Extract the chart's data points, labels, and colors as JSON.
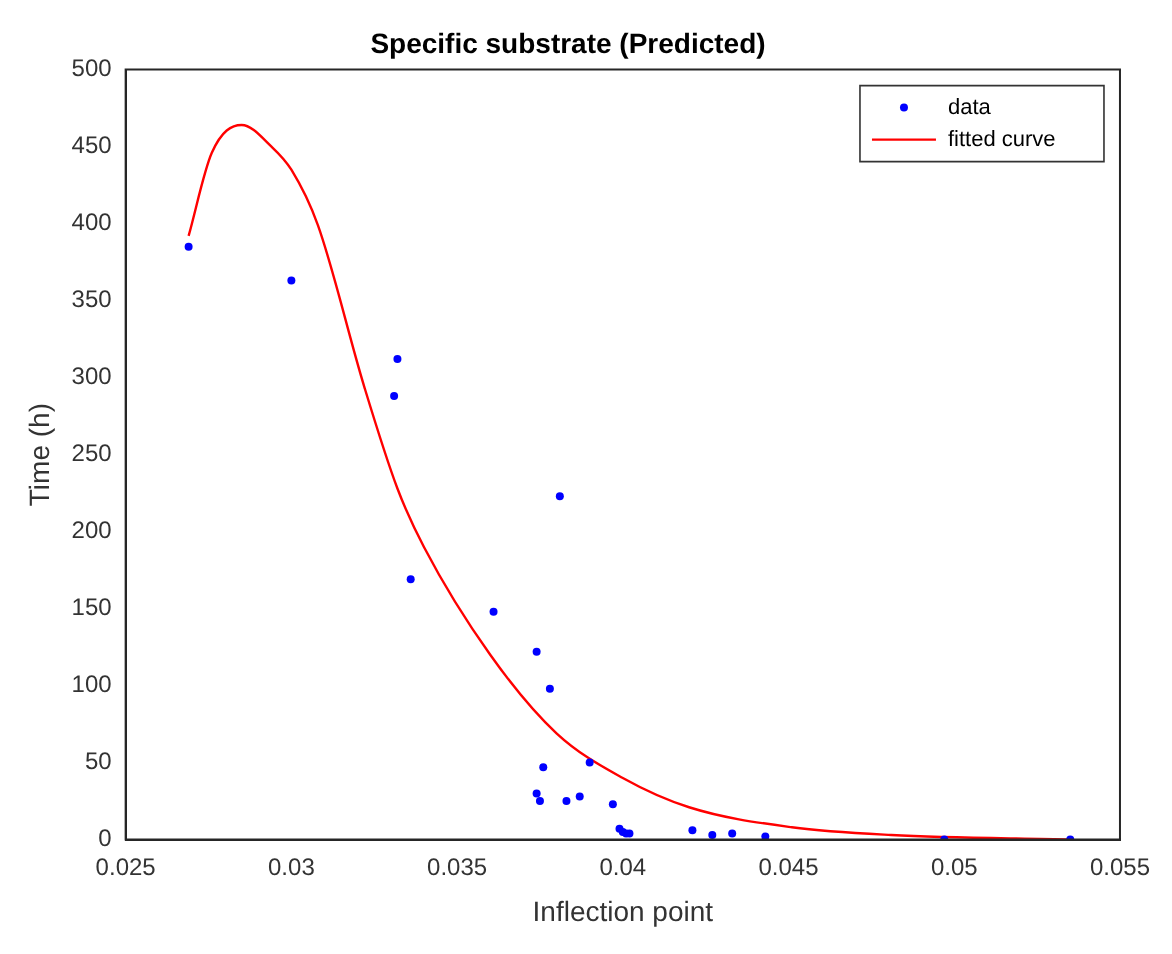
{
  "chart_data": {
    "type": "scatter",
    "title": "Specific substrate (Predicted)",
    "xlabel": "Inflection point",
    "ylabel": "Time (h)",
    "xlim": [
      0.025,
      0.055
    ],
    "xticks": [
      0.025,
      0.03,
      0.035,
      0.04,
      0.045,
      0.05,
      0.055
    ],
    "ylim": [
      0,
      500
    ],
    "yticks": [
      0,
      50,
      100,
      150,
      200,
      250,
      300,
      350,
      400,
      450,
      500
    ],
    "grid": false,
    "legend": "top right",
    "series": [
      {
        "name": "data",
        "marker": "circle",
        "color": "#0000ff",
        "x": [
          0.0269,
          0.03,
          0.0332,
          0.0331,
          0.0336,
          0.0361,
          0.0381,
          0.0374,
          0.0378,
          0.0376,
          0.039,
          0.0374,
          0.0375,
          0.0383,
          0.0387,
          0.0397,
          0.0399,
          0.04,
          0.0401,
          0.0402,
          0.0421,
          0.0427,
          0.0433,
          0.0443,
          0.0497,
          0.0535
        ],
        "values": [
          385,
          363,
          312,
          288,
          169,
          148,
          223,
          122,
          98,
          47,
          50,
          30,
          25,
          25,
          28,
          23,
          7,
          5,
          4,
          4,
          6,
          3,
          4,
          2,
          0,
          0
        ]
      },
      {
        "name": "fitted curve",
        "type": "line",
        "marker": "none",
        "line_style": "solid",
        "color": "#ff0000",
        "x": [
          0.0269,
          0.0276,
          0.0285,
          0.0294,
          0.03,
          0.0308,
          0.0322,
          0.0332,
          0.034,
          0.036,
          0.038,
          0.04,
          0.042,
          0.0451,
          0.0481,
          0.0535
        ],
        "values": [
          392,
          446,
          464,
          450,
          435,
          399,
          294,
          228,
          190,
          120,
          69,
          40,
          21,
          8,
          3,
          0
        ]
      }
    ]
  }
}
